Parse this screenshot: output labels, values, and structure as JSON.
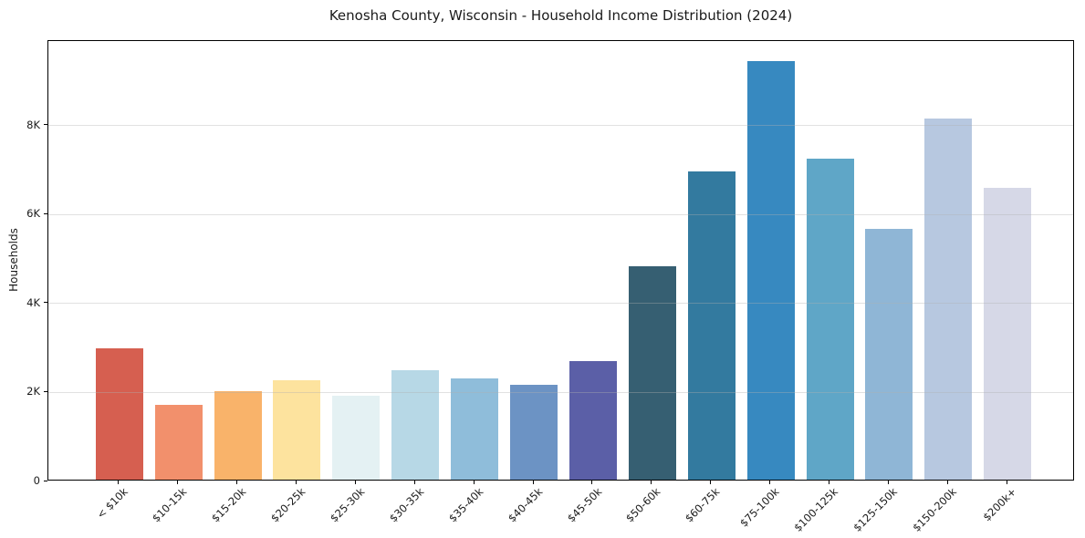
{
  "title": "Kenosha County, Wisconsin - Household Income Distribution (2024)",
  "chart_data": {
    "type": "bar",
    "title": "Kenosha County, Wisconsin - Household Income Distribution (2024)",
    "xlabel": "",
    "ylabel": "Households",
    "ylim": [
      0,
      9900
    ],
    "grid": true,
    "legend": false,
    "categories": [
      "< $10k",
      "$10-15k",
      "$15-20k",
      "$20-25k",
      "$25-30k",
      "$30-35k",
      "$35-40k",
      "$40-45k",
      "$45-50k",
      "$50-60k",
      "$60-75k",
      "$75-100k",
      "$100-125k",
      "$125-150k",
      "$150-200k",
      "$200k+"
    ],
    "values": [
      2950,
      1680,
      1990,
      2230,
      1890,
      2470,
      2280,
      2130,
      2660,
      4800,
      6930,
      9400,
      7220,
      5640,
      8110,
      6550
    ],
    "bar_colors": [
      "#d65f50",
      "#f2906c",
      "#f9b36a",
      "#fde39e",
      "#e4f1f3",
      "#b7d8e6",
      "#8fbdda",
      "#6c93c4",
      "#5b5fa7",
      "#365f72",
      "#337a9f",
      "#3789c0",
      "#5fa6c7",
      "#8fb6d6",
      "#b7c8e0",
      "#d6d8e7"
    ],
    "y_ticks": [
      {
        "value": 0,
        "label": "0"
      },
      {
        "value": 2000,
        "label": "2K"
      },
      {
        "value": 4000,
        "label": "4K"
      },
      {
        "value": 6000,
        "label": "6K"
      },
      {
        "value": 8000,
        "label": "8K"
      }
    ]
  },
  "colors": {
    "background": "#ffffff",
    "spine": "#000000",
    "grid": "#b0b0b0",
    "text": "#1a1a1a"
  }
}
